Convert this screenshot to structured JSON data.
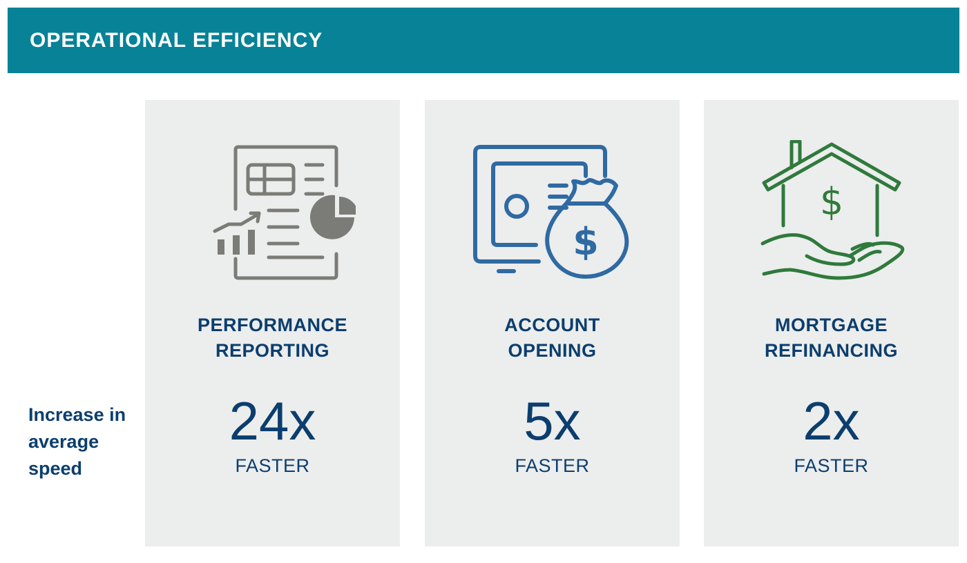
{
  "header": {
    "title": "OPERATIONAL EFFICIENCY"
  },
  "side_label": "Increase in average speed",
  "cards": [
    {
      "title_line1": "PERFORMANCE",
      "title_line2": "REPORTING",
      "stat": "24x",
      "unit": "FASTER",
      "icon": "report-chart-icon",
      "color": "#7b7b77"
    },
    {
      "title_line1": "ACCOUNT",
      "title_line2": "OPENING",
      "stat": "5x",
      "unit": "FASTER",
      "icon": "safe-money-bag-icon",
      "color": "#2f6aa3"
    },
    {
      "title_line1": "MORTGAGE",
      "title_line2": "REFINANCING",
      "stat": "2x",
      "unit": "FASTER",
      "icon": "house-in-hand-icon",
      "color": "#2f7a3c"
    }
  ]
}
